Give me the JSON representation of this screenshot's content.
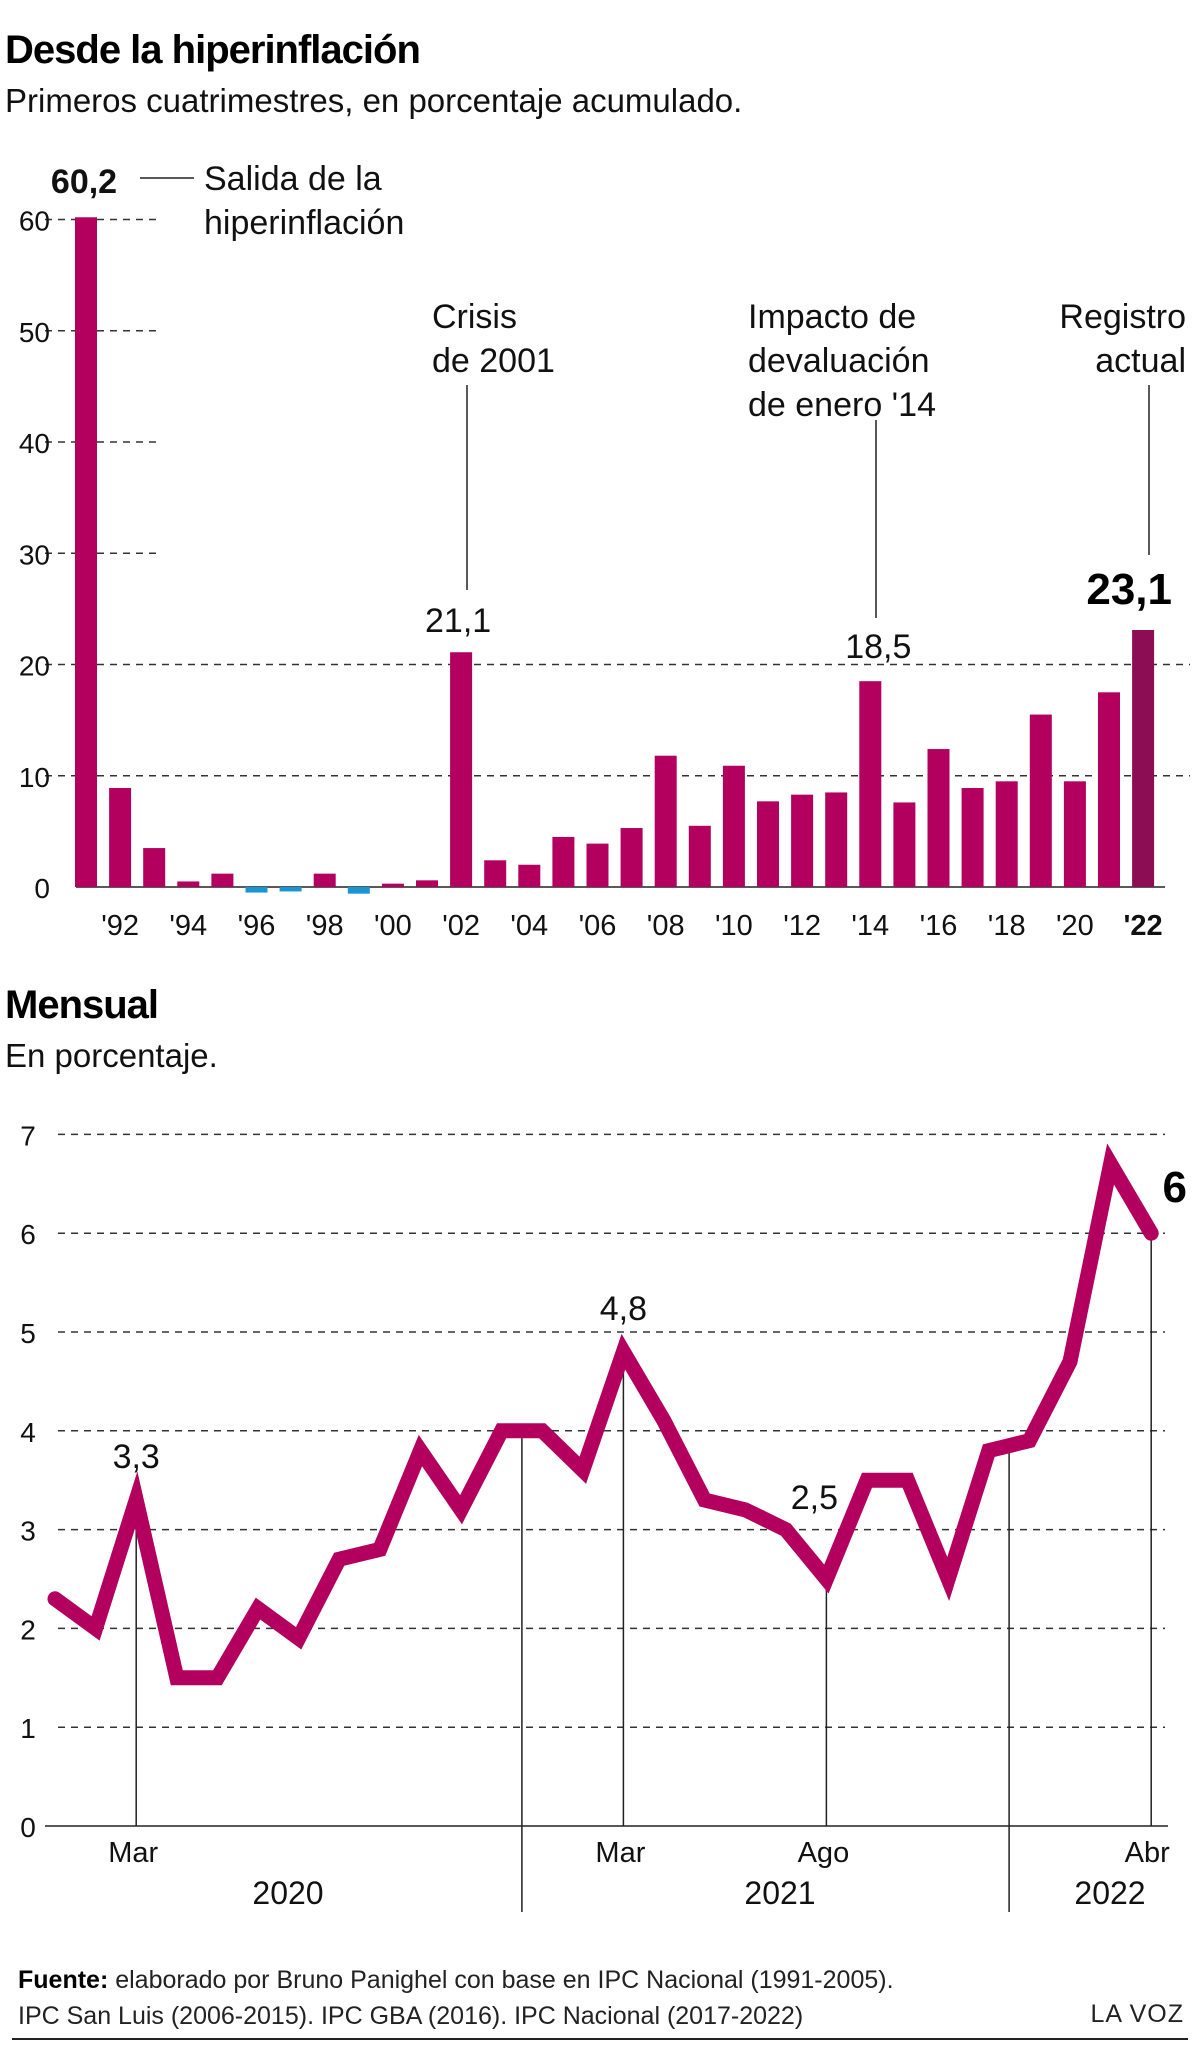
{
  "chart_data": [
    {
      "type": "bar",
      "title": "Desde la hiperinflación",
      "subtitle": "Primeros cuatrimestres, en porcentaje acumulado.",
      "x": [
        1991,
        1992,
        1993,
        1994,
        1995,
        1996,
        1997,
        1998,
        1999,
        2000,
        2001,
        2002,
        2003,
        2004,
        2005,
        2006,
        2007,
        2008,
        2009,
        2010,
        2011,
        2012,
        2013,
        2014,
        2015,
        2016,
        2017,
        2018,
        2019,
        2020,
        2021,
        2022
      ],
      "values": [
        60.2,
        8.9,
        3.5,
        0.5,
        1.2,
        -0.5,
        -0.4,
        1.2,
        -0.6,
        0.3,
        0.6,
        21.1,
        2.4,
        2.0,
        4.5,
        3.9,
        5.3,
        11.8,
        5.5,
        10.9,
        7.7,
        8.3,
        8.5,
        18.5,
        7.6,
        12.4,
        8.9,
        9.5,
        15.5,
        9.5,
        17.5,
        23.1
      ],
      "x_tick_labels": [
        "'92",
        "'94",
        "'96",
        "'98",
        "'00",
        "'02",
        "'04",
        "'06",
        "'08",
        "'10",
        "'12",
        "'14",
        "'16",
        "'18",
        "'20",
        "'22"
      ],
      "y_ticks": [
        0,
        10,
        20,
        30,
        40,
        50,
        60
      ],
      "ylim": [
        -1,
        64
      ],
      "grid": "dashed horizontal",
      "data_labels": {
        "1991": "60,2",
        "2002": "21,1",
        "2014": "18,5",
        "2022": "23,1"
      },
      "annotations": [
        {
          "x": 1991,
          "text": [
            "Salida de la",
            "hiperinflación"
          ]
        },
        {
          "x": 2002,
          "text": [
            "Crisis",
            "de 2001"
          ]
        },
        {
          "x": 2014,
          "text": [
            "Impacto de",
            "devaluación",
            "de enero '14"
          ]
        },
        {
          "x": 2022,
          "text": [
            "Registro",
            "actual"
          ]
        }
      ],
      "colors": {
        "positive": "#b3005f",
        "negative": "#1a95d4",
        "highlight": "#8c0d54"
      }
    },
    {
      "type": "line",
      "title": "Mensual",
      "subtitle": "En porcentaje.",
      "x": [
        "2020-01",
        "2020-02",
        "2020-03",
        "2020-04",
        "2020-05",
        "2020-06",
        "2020-07",
        "2020-08",
        "2020-09",
        "2020-10",
        "2020-11",
        "2020-12",
        "2021-01",
        "2021-02",
        "2021-03",
        "2021-04",
        "2021-05",
        "2021-06",
        "2021-07",
        "2021-08",
        "2021-09",
        "2021-10",
        "2021-11",
        "2021-12",
        "2022-01",
        "2022-02",
        "2022-03",
        "2022-04"
      ],
      "values": [
        2.3,
        2.0,
        3.3,
        1.5,
        1.5,
        2.2,
        1.9,
        2.7,
        2.8,
        3.8,
        3.2,
        4.0,
        4.0,
        3.6,
        4.8,
        4.1,
        3.3,
        3.2,
        3.0,
        2.5,
        3.5,
        3.5,
        2.5,
        3.8,
        3.9,
        4.7,
        6.7,
        6.0
      ],
      "y_ticks": [
        0,
        1,
        2,
        3,
        4,
        5,
        6,
        7
      ],
      "ylim": [
        0,
        7
      ],
      "x_tick_labels": [
        {
          "x": "2020-03",
          "label": "Mar"
        },
        {
          "x": "2021-03",
          "label": "Mar"
        },
        {
          "x": "2021-08",
          "label": "Ago"
        },
        {
          "x": "2022-04",
          "label": "Abr"
        }
      ],
      "year_labels": [
        {
          "x": "2020",
          "label": "2020"
        },
        {
          "x": "2021",
          "label": "2021"
        },
        {
          "x": "2022",
          "label": "2022"
        }
      ],
      "data_labels": {
        "2020-03": "3,3",
        "2021-03": "4,8",
        "2021-08": "2,5",
        "2022-04": "6"
      },
      "grid": "dashed horizontal",
      "color": "#b3005f"
    }
  ],
  "footer": {
    "source_label": "Fuente:",
    "source_line1": " elaborado por Bruno Panighel con base en IPC Nacional (1991-2005).",
    "source_line2": "IPC San Luis (2006-2015). IPC GBA (2016). IPC Nacional (2017-2022)",
    "brand": "LA VOZ"
  }
}
